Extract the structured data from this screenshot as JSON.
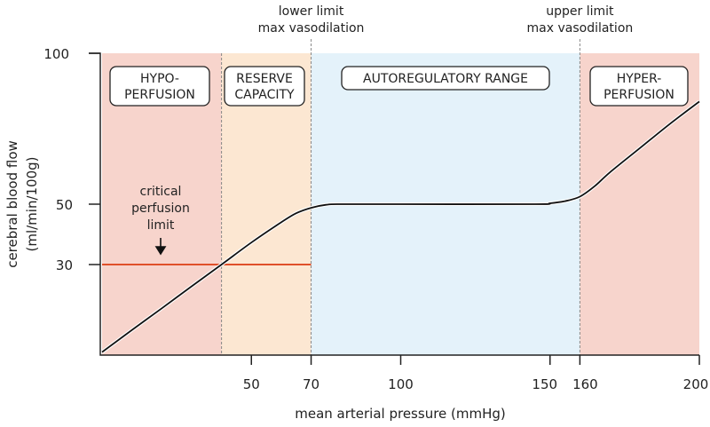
{
  "chart_data": {
    "type": "line",
    "xlabel": "mean arterial pressure (mmHg)",
    "ylabel_lines": [
      "cerebral blood flow",
      "(ml/min/100g)"
    ],
    "xlim": [
      0,
      200
    ],
    "ylim": [
      0,
      100
    ],
    "x_ticks": [
      50,
      70,
      100,
      150,
      160,
      200
    ],
    "y_ticks": [
      30,
      50,
      100
    ],
    "grid": false,
    "series": [
      {
        "color": "#111111",
        "points": [
          [
            0,
            1
          ],
          [
            10,
            8.3
          ],
          [
            20,
            15.5
          ],
          [
            30,
            22.8
          ],
          [
            40,
            30
          ],
          [
            50,
            37.3
          ],
          [
            60,
            44
          ],
          [
            65,
            47
          ],
          [
            70,
            48.8
          ],
          [
            75,
            49.8
          ],
          [
            80,
            50
          ],
          [
            100,
            50
          ],
          [
            145,
            50
          ],
          [
            150,
            50.3
          ],
          [
            155,
            51
          ],
          [
            160,
            52.5
          ],
          [
            165,
            56
          ],
          [
            170,
            60.5
          ],
          [
            180,
            68.5
          ],
          [
            190,
            76.5
          ],
          [
            200,
            84
          ]
        ]
      }
    ],
    "regions": [
      {
        "label_lines": [
          "HYPO-",
          "PERFUSION"
        ],
        "x_range": [
          0,
          40
        ],
        "color": "#f7d4cc"
      },
      {
        "label_lines": [
          "RESERVE",
          "CAPACITY"
        ],
        "x_range": [
          40,
          70
        ],
        "color": "#fce7d2"
      },
      {
        "label_lines": [
          "AUTOREGULATORY RANGE"
        ],
        "x_range": [
          70,
          160
        ],
        "color": "#e4f2fa"
      },
      {
        "label_lines": [
          "HYPER-",
          "PERFUSION"
        ],
        "x_range": [
          160,
          200
        ],
        "color": "#f7d4cc"
      }
    ],
    "vertical_markers": [
      {
        "x": 40,
        "label_lines": []
      },
      {
        "x": 70,
        "label_lines": [
          "lower limit",
          "max vasodilation"
        ]
      },
      {
        "x": 160,
        "label_lines": [
          "upper limit",
          "max vasodilation"
        ]
      }
    ],
    "threshold": {
      "y": 30,
      "x_range": [
        0,
        70
      ],
      "color": "#e0502a",
      "label_lines": [
        "critical",
        "perfusion",
        "limit"
      ],
      "arrow": "arrow-down-icon"
    }
  }
}
